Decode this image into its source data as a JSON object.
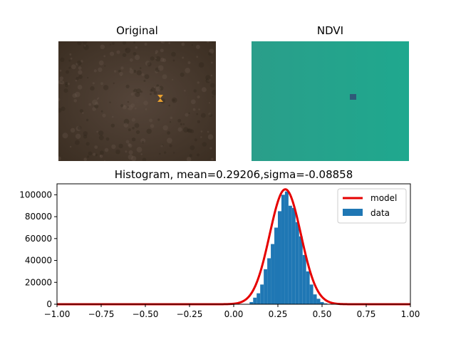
{
  "panels": {
    "original_title": "Original",
    "ndvi_title": "NDVI"
  },
  "colors": {
    "hist_bar": "#1f77b4",
    "model_line": "#e60000",
    "original_bg": "#4a3b2c",
    "ndvi_bg": "#23a08c",
    "ndvi_marker": "#2f5a78"
  },
  "chart_data": {
    "type": "bar",
    "title": "Histogram, mean=0.29206,sigma=-0.08858",
    "xlabel": "",
    "ylabel": "",
    "xlim": [
      -1.0,
      1.0
    ],
    "ylim": [
      0,
      110000
    ],
    "x_ticks": [
      "−1.00",
      "−0.75",
      "−0.50",
      "−0.25",
      "0.00",
      "0.25",
      "0.50",
      "0.75",
      "1.00"
    ],
    "y_ticks": [
      "0",
      "20000",
      "40000",
      "60000",
      "80000",
      "100000"
    ],
    "x_tick_values": [
      -1.0,
      -0.75,
      -0.5,
      -0.25,
      0.0,
      0.25,
      0.5,
      0.75,
      1.0
    ],
    "y_tick_values": [
      0,
      20000,
      40000,
      60000,
      80000,
      100000
    ],
    "mean": 0.29206,
    "sigma": 0.08858,
    "model_peak": 105000,
    "bin_width": 0.02,
    "bins": [
      {
        "x": 0.1,
        "y": 2000
      },
      {
        "x": 0.12,
        "y": 6000
      },
      {
        "x": 0.14,
        "y": 10000
      },
      {
        "x": 0.16,
        "y": 18000
      },
      {
        "x": 0.18,
        "y": 32000
      },
      {
        "x": 0.2,
        "y": 42000
      },
      {
        "x": 0.22,
        "y": 55000
      },
      {
        "x": 0.24,
        "y": 70000
      },
      {
        "x": 0.26,
        "y": 85000
      },
      {
        "x": 0.28,
        "y": 100000
      },
      {
        "x": 0.3,
        "y": 103000
      },
      {
        "x": 0.32,
        "y": 90000
      },
      {
        "x": 0.34,
        "y": 88000
      },
      {
        "x": 0.36,
        "y": 75000
      },
      {
        "x": 0.38,
        "y": 62000
      },
      {
        "x": 0.4,
        "y": 45000
      },
      {
        "x": 0.42,
        "y": 30000
      },
      {
        "x": 0.44,
        "y": 18000
      },
      {
        "x": 0.46,
        "y": 9000
      },
      {
        "x": 0.48,
        "y": 5000
      },
      {
        "x": 0.5,
        "y": 2000
      },
      {
        "x": 0.52,
        "y": 800
      }
    ],
    "legend": {
      "placement": "top-right",
      "entries": [
        {
          "label": "model",
          "kind": "line"
        },
        {
          "label": "data",
          "kind": "patch"
        }
      ]
    }
  }
}
